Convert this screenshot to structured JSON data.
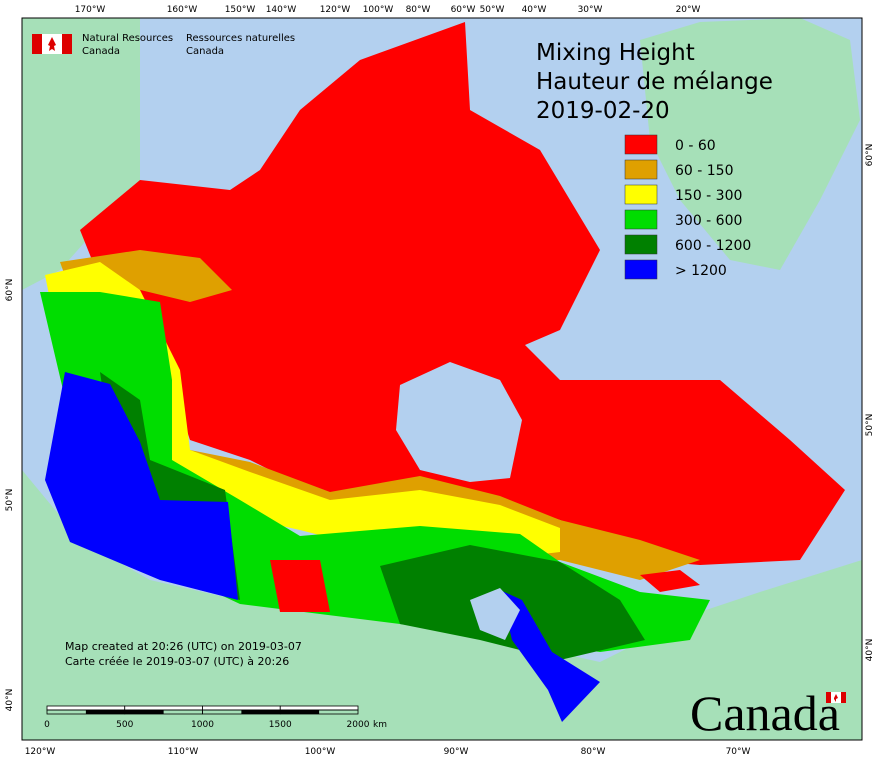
{
  "agency": {
    "en_line1": "Natural Resources",
    "en_line2": "Canada",
    "fr_line1": "Ressources naturelles",
    "fr_line2": "Canada"
  },
  "title": {
    "line1": "Mixing Height",
    "line2": "Hauteur de mélange",
    "date": "2019-02-20"
  },
  "legend": [
    {
      "label": "0 - 60",
      "color": "#ff0000"
    },
    {
      "label": "60 - 150",
      "color": "#dfa000"
    },
    {
      "label": "150 - 300",
      "color": "#ffff00"
    },
    {
      "label": "300 - 600",
      "color": "#00dd00"
    },
    {
      "label": "600 - 1200",
      "color": "#008000"
    },
    {
      "label": "> 1200",
      "color": "#0000ff"
    }
  ],
  "top_longitudes": [
    "170°W",
    "160°W",
    "150°W",
    "140°W",
    "120°W",
    "100°W",
    "80°W",
    "60°W",
    "50°W",
    "40°W",
    "30°W",
    "20°W"
  ],
  "bottom_longitudes": [
    "120°W",
    "110°W",
    "100°W",
    "90°W",
    "80°W",
    "70°W"
  ],
  "left_latitudes": [
    "60°N",
    "50°N",
    "40°N"
  ],
  "right_latitudes": [
    "60°N",
    "50°N",
    "40°N"
  ],
  "credits": [
    "Map created at 20:26 (UTC) on 2019-03-07",
    "Carte créée le 2019-03-07 (UTC) à 20:26"
  ],
  "scale_bar": {
    "labels": [
      "0",
      "500",
      "1000",
      "1500",
      "2000"
    ],
    "unit": "km"
  },
  "wordmark": "Canada"
}
